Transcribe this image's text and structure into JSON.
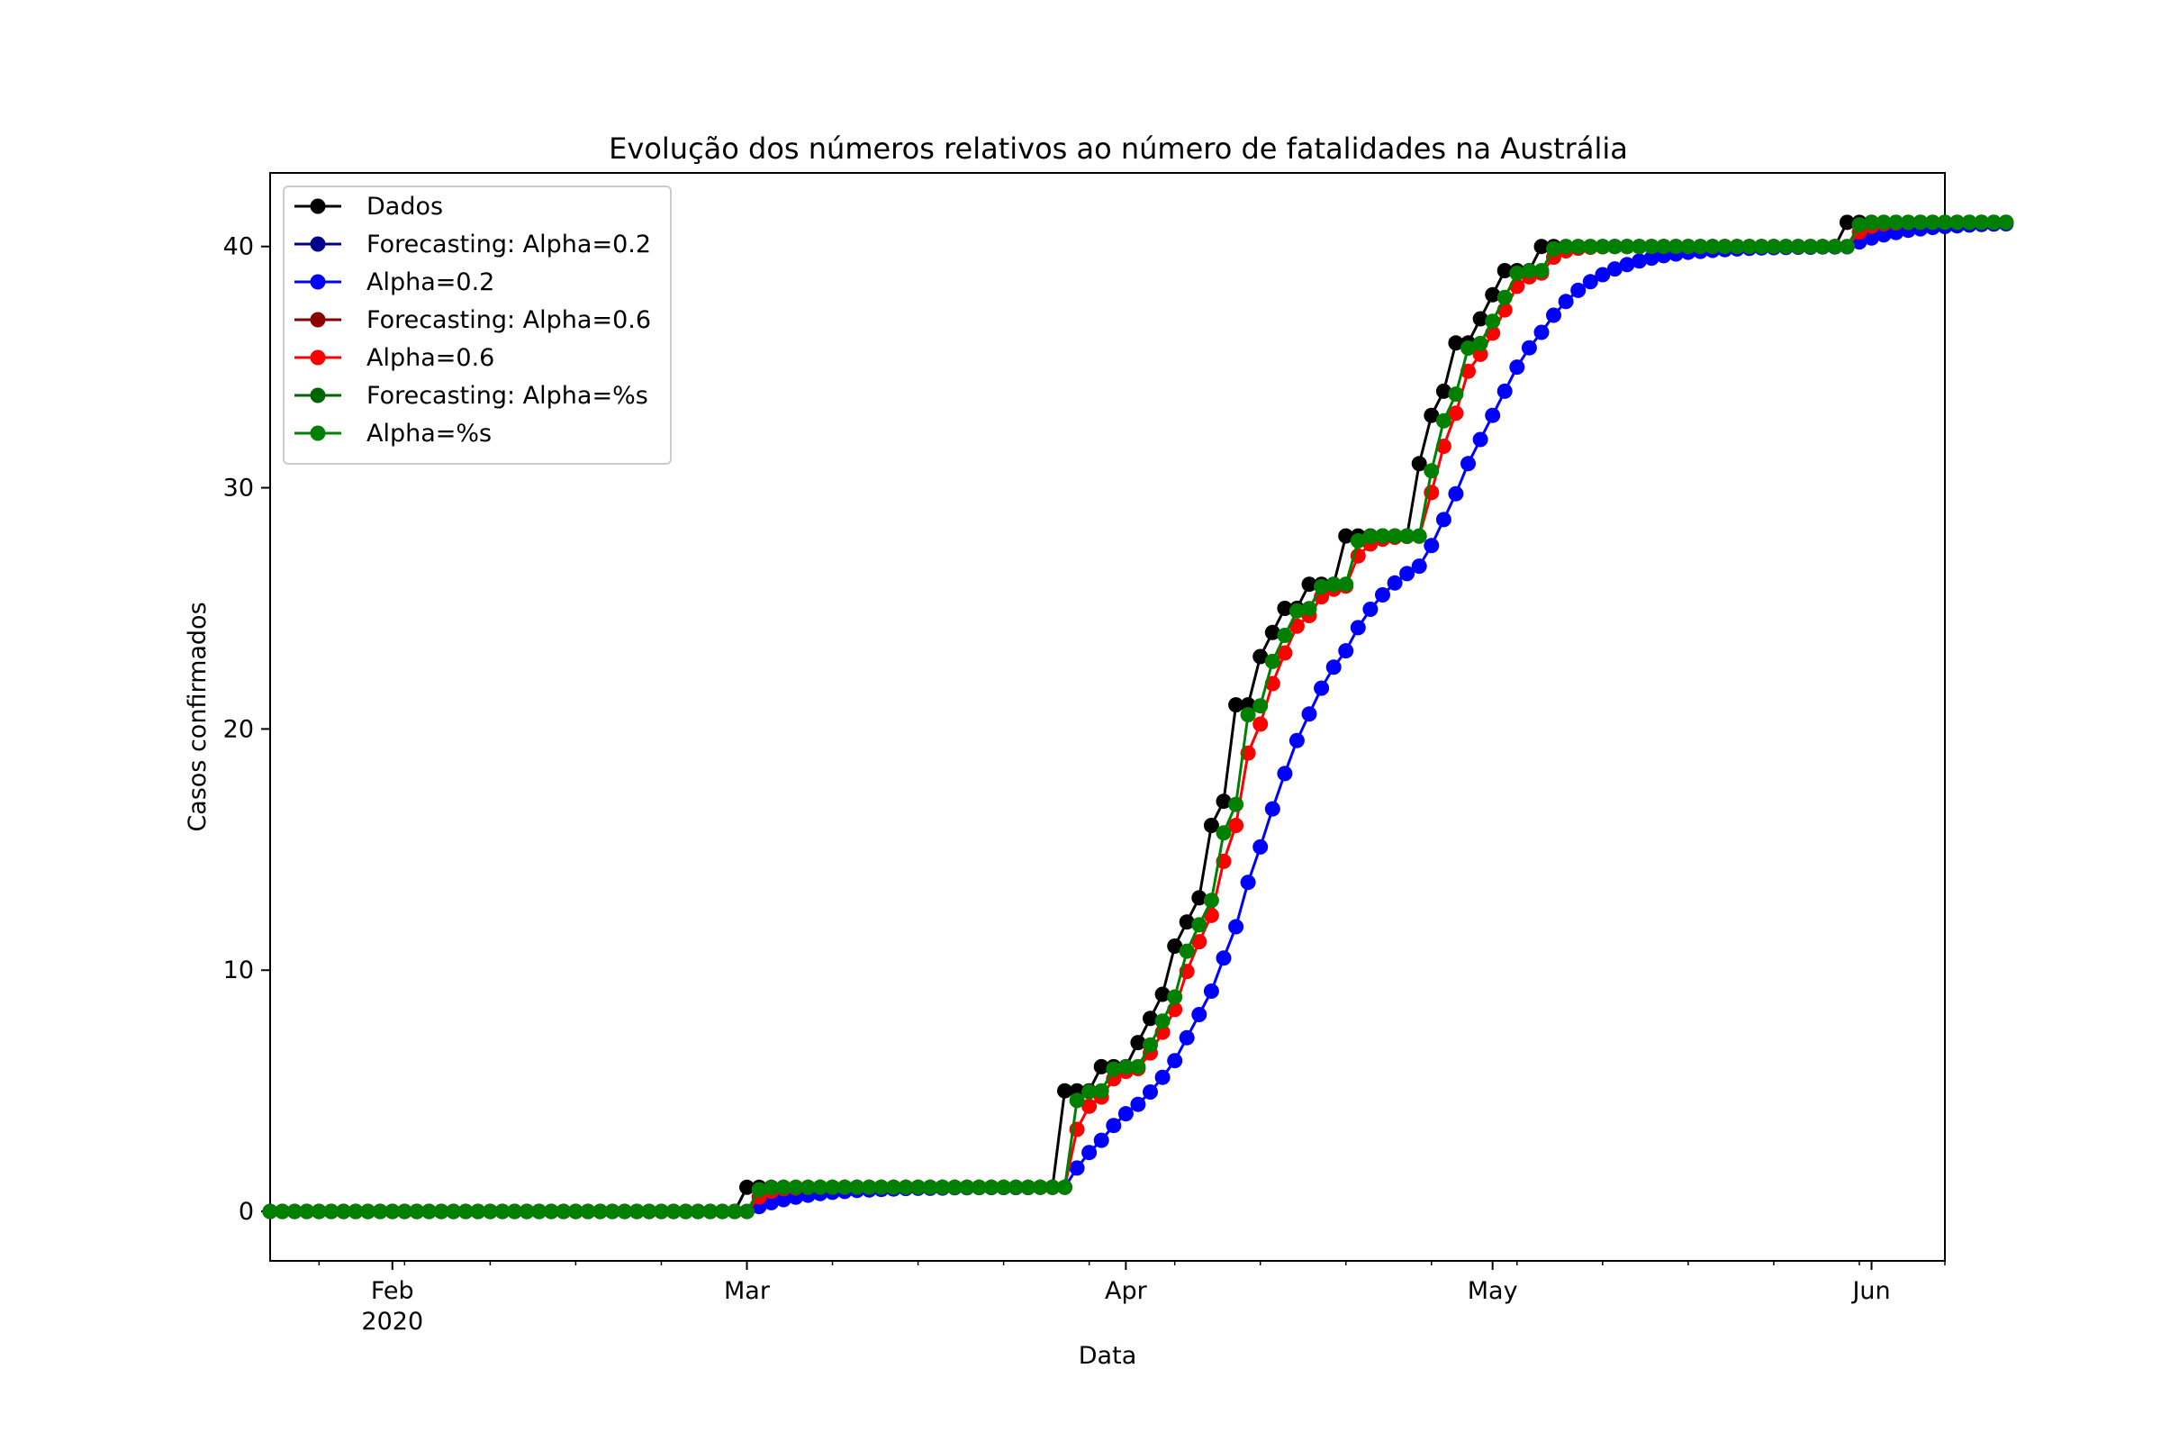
{
  "chart_data": {
    "type": "line",
    "title": "Evolução dos números relativos ao número de fatalidades na Austrália",
    "xlabel": "Data",
    "ylabel": "Casos confirmados",
    "x_axis": {
      "type": "date",
      "start": "2020-01-22",
      "end": "2020-06-07",
      "major_ticks": [
        {
          "date": "2020-02-01",
          "label": "Feb",
          "sublabel": "2020"
        },
        {
          "date": "2020-03-01",
          "label": "Mar",
          "sublabel": ""
        },
        {
          "date": "2020-04-01",
          "label": "Apr",
          "sublabel": ""
        },
        {
          "date": "2020-05-01",
          "label": "May",
          "sublabel": ""
        },
        {
          "date": "2020-06-01",
          "label": "Jun",
          "sublabel": ""
        }
      ]
    },
    "y_axis": {
      "ylim": [
        -2.05,
        43.05
      ],
      "ticks": [
        0,
        10,
        20,
        30,
        40
      ]
    },
    "grid": false,
    "legend_position": "top-left",
    "first_date": "2020-01-22",
    "series": [
      {
        "name": "Dados",
        "role": "data",
        "color": "#000000",
        "values": [
          0,
          0,
          0,
          0,
          0,
          0,
          0,
          0,
          0,
          0,
          0,
          0,
          0,
          0,
          0,
          0,
          0,
          0,
          0,
          0,
          0,
          0,
          0,
          0,
          0,
          0,
          0,
          0,
          0,
          0,
          0,
          0,
          0,
          0,
          0,
          0,
          0,
          0,
          0,
          1,
          1,
          1,
          1,
          1,
          1,
          1,
          1,
          1,
          1,
          1,
          1,
          1,
          1,
          1,
          1,
          1,
          1,
          1,
          1,
          1,
          1,
          1,
          1,
          1,
          1,
          5,
          5,
          5,
          6,
          6,
          6,
          7,
          8,
          9,
          11,
          12,
          13,
          16,
          17,
          21,
          21,
          23,
          24,
          25,
          25,
          26,
          26,
          26,
          28,
          28,
          28,
          28,
          28,
          28,
          31,
          33,
          34,
          36,
          36,
          37,
          38,
          39,
          39,
          39,
          40,
          40,
          40,
          40,
          40,
          40,
          40,
          40,
          40,
          40,
          40,
          40,
          40,
          40,
          40,
          40,
          40,
          40,
          40,
          40,
          40,
          40,
          40,
          40,
          40,
          41,
          41,
          41,
          41,
          41,
          41,
          41,
          41,
          41,
          41,
          41,
          41,
          41,
          41
        ]
      },
      {
        "name": "Forecasting: Alpha=0.2",
        "role": "forecast",
        "color": "#00008b",
        "values": []
      },
      {
        "name": "Alpha=0.2",
        "role": "fit",
        "color": "#0000ff",
        "values": []
      },
      {
        "name": "Forecasting: Alpha=0.6",
        "role": "forecast",
        "color": "#8b0000",
        "values": []
      },
      {
        "name": "Alpha=0.6",
        "role": "fit",
        "color": "#ff0000",
        "values": []
      },
      {
        "name": "Forecasting: Alpha=%s",
        "role": "forecast",
        "color": "#006400",
        "values": []
      },
      {
        "name": "Alpha=%s",
        "role": "fit",
        "color": "#008000",
        "values": []
      }
    ]
  }
}
